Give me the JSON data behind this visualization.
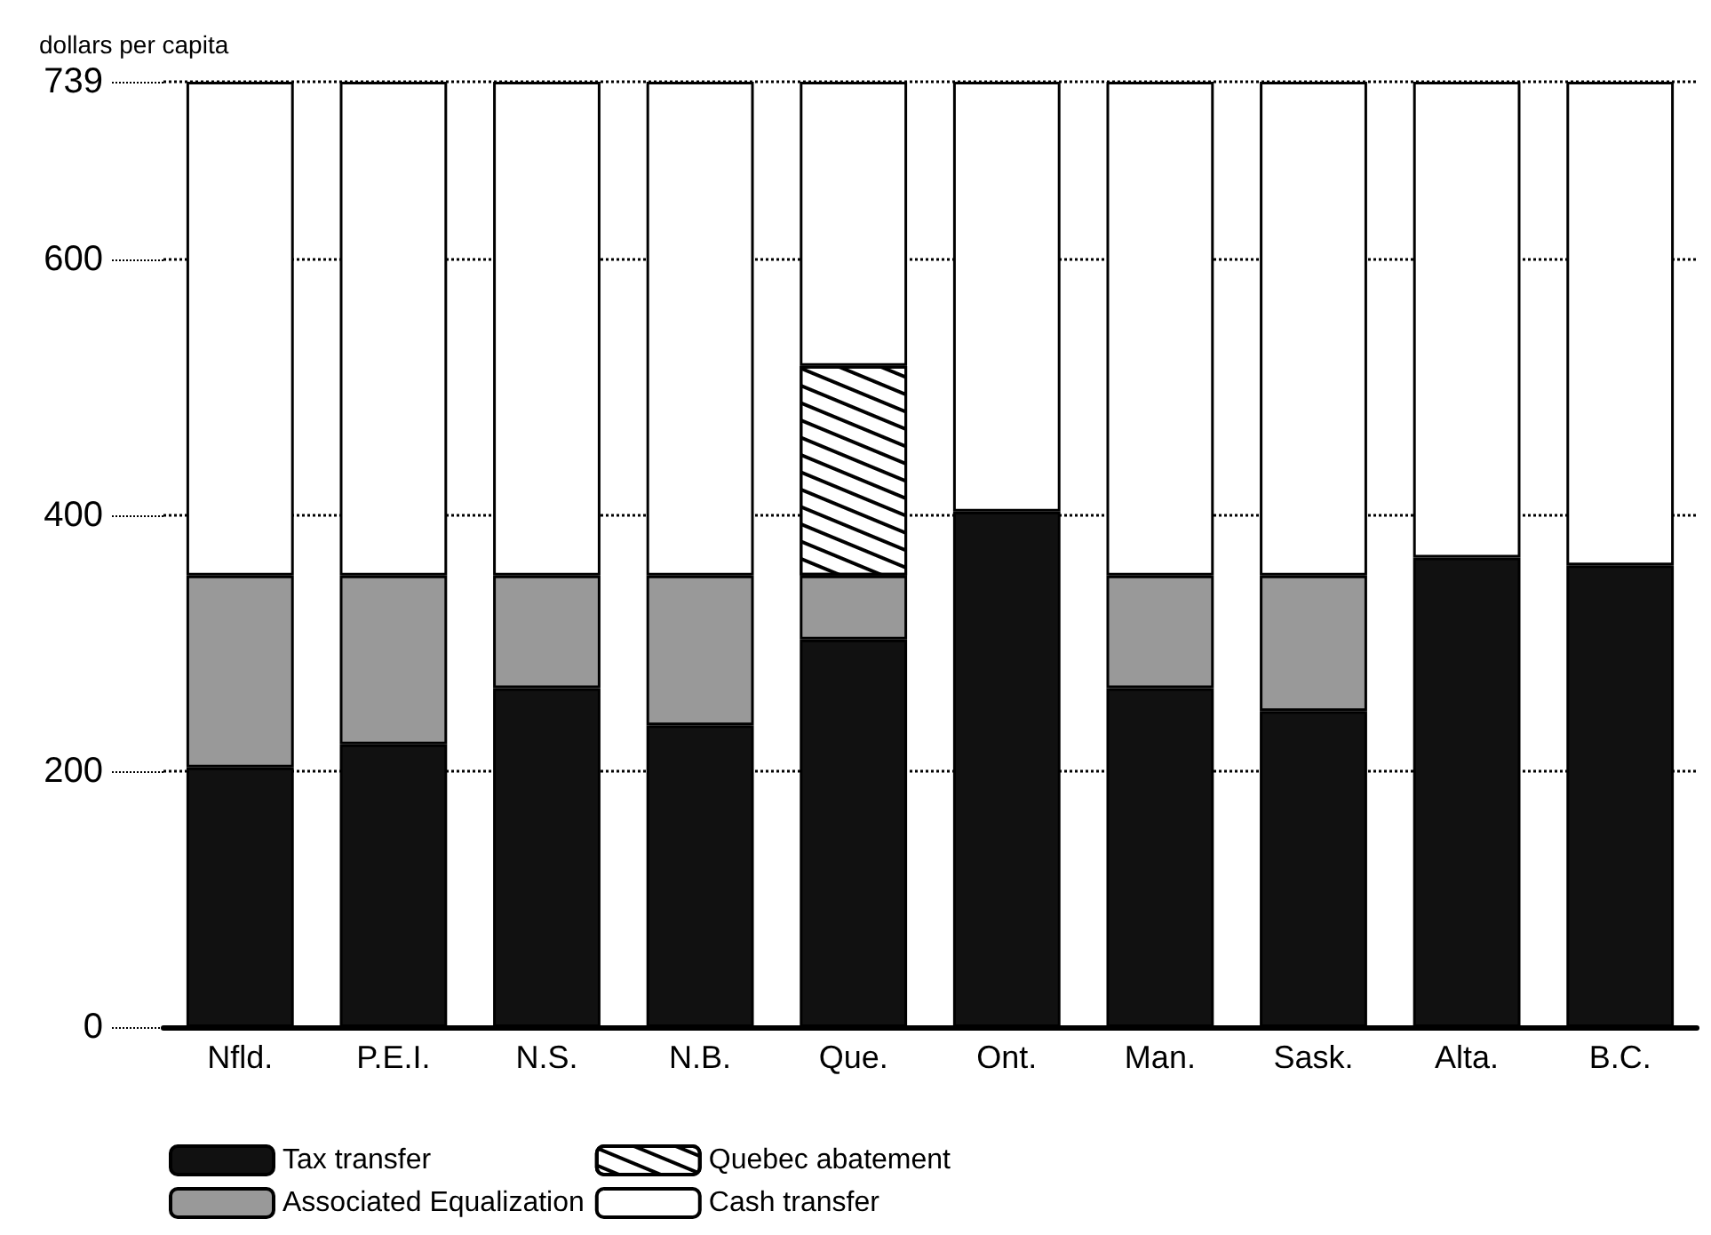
{
  "chart_data": {
    "type": "bar",
    "stacked": true,
    "ylabel": "dollars per capita",
    "categories": [
      "Nfld.",
      "P.E.I.",
      "N.S.",
      "N.B.",
      "Que.",
      "Ont.",
      "Man.",
      "Sask.",
      "Alta.",
      "B.C."
    ],
    "series": [
      {
        "name": "Tax transfer",
        "color": "#111111",
        "values": [
          203,
          221,
          265,
          236,
          303,
          403,
          265,
          247,
          367,
          361
        ]
      },
      {
        "name": "Associated Equalization",
        "color": "#999999",
        "values": [
          150,
          132,
          88,
          117,
          50,
          null,
          88,
          106,
          null,
          null
        ]
      },
      {
        "name": "Quebec abatement",
        "color": "#ffffff",
        "values": [
          null,
          null,
          null,
          null,
          164,
          null,
          null,
          null,
          null,
          null
        ]
      },
      {
        "name": "Cash transfer",
        "color": "#ffffff",
        "values": [
          386,
          386,
          386,
          386,
          222,
          336,
          386,
          386,
          372,
          378
        ]
      }
    ],
    "ylim": [
      0,
      739
    ],
    "yticks": [
      0,
      200,
      400,
      600,
      739
    ],
    "grid": "y",
    "legend": "bottom left"
  }
}
